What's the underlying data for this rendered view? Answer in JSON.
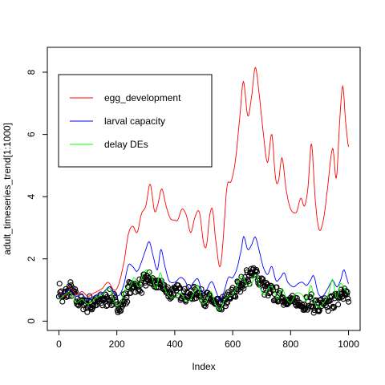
{
  "chart_data": {
    "type": "line",
    "xlabel": "Index",
    "ylabel": "adult_timeseries_trend[1:1000]",
    "xlim": [
      -40,
      1040
    ],
    "ylim": [
      -0.3,
      8.8
    ],
    "x_ticks": [
      0,
      200,
      400,
      600,
      800,
      1000
    ],
    "y_ticks": [
      0,
      2,
      4,
      6,
      8
    ],
    "legend_position": "top-left",
    "grid": false,
    "series": [
      {
        "name": "egg_development",
        "style": "line",
        "color": "#ff0000",
        "points": [
          [
            0,
            0.95
          ],
          [
            20,
            0.8
          ],
          [
            40,
            1.05
          ],
          [
            60,
            0.85
          ],
          [
            80,
            0.95
          ],
          [
            100,
            0.8
          ],
          [
            120,
            0.9
          ],
          [
            150,
            1.05
          ],
          [
            170,
            1.25
          ],
          [
            190,
            1.0
          ],
          [
            205,
            1.15
          ],
          [
            225,
            1.9
          ],
          [
            240,
            2.8
          ],
          [
            255,
            3.05
          ],
          [
            270,
            2.85
          ],
          [
            285,
            3.45
          ],
          [
            300,
            3.7
          ],
          [
            315,
            4.4
          ],
          [
            330,
            3.55
          ],
          [
            340,
            3.7
          ],
          [
            355,
            4.25
          ],
          [
            370,
            3.7
          ],
          [
            385,
            3.3
          ],
          [
            400,
            3.25
          ],
          [
            410,
            3.25
          ],
          [
            425,
            3.6
          ],
          [
            440,
            3.4
          ],
          [
            455,
            2.85
          ],
          [
            470,
            3.35
          ],
          [
            485,
            3.5
          ],
          [
            500,
            2.5
          ],
          [
            510,
            2.45
          ],
          [
            520,
            3.35
          ],
          [
            530,
            3.6
          ],
          [
            540,
            2.7
          ],
          [
            555,
            1.75
          ],
          [
            565,
            2.4
          ],
          [
            580,
            4.3
          ],
          [
            595,
            4.5
          ],
          [
            610,
            5.2
          ],
          [
            625,
            6.6
          ],
          [
            637,
            7.7
          ],
          [
            652,
            6.6
          ],
          [
            665,
            7.2
          ],
          [
            678,
            8.15
          ],
          [
            690,
            7.4
          ],
          [
            705,
            6.1
          ],
          [
            720,
            5.1
          ],
          [
            735,
            6.0
          ],
          [
            748,
            4.6
          ],
          [
            758,
            4.5
          ],
          [
            770,
            5.25
          ],
          [
            785,
            4.2
          ],
          [
            800,
            3.6
          ],
          [
            820,
            3.5
          ],
          [
            835,
            3.95
          ],
          [
            848,
            3.7
          ],
          [
            860,
            4.3
          ],
          [
            872,
            5.7
          ],
          [
            885,
            3.9
          ],
          [
            898,
            2.95
          ],
          [
            912,
            3.2
          ],
          [
            925,
            4.1
          ],
          [
            945,
            5.55
          ],
          [
            958,
            4.6
          ],
          [
            970,
            6.5
          ],
          [
            980,
            7.55
          ],
          [
            990,
            6.4
          ],
          [
            1000,
            5.6
          ]
        ]
      },
      {
        "name": "larval capacity",
        "style": "line",
        "color": "#0000ff",
        "points": [
          [
            0,
            0.8
          ],
          [
            20,
            0.9
          ],
          [
            40,
            1.0
          ],
          [
            60,
            0.8
          ],
          [
            80,
            0.85
          ],
          [
            100,
            0.7
          ],
          [
            130,
            0.85
          ],
          [
            150,
            0.9
          ],
          [
            175,
            1.1
          ],
          [
            195,
            0.85
          ],
          [
            210,
            0.85
          ],
          [
            225,
            1.2
          ],
          [
            240,
            1.8
          ],
          [
            255,
            1.75
          ],
          [
            270,
            1.6
          ],
          [
            285,
            1.9
          ],
          [
            300,
            2.3
          ],
          [
            312,
            2.55
          ],
          [
            325,
            2.1
          ],
          [
            340,
            1.65
          ],
          [
            352,
            2.3
          ],
          [
            365,
            1.8
          ],
          [
            380,
            1.3
          ],
          [
            400,
            1.25
          ],
          [
            420,
            1.4
          ],
          [
            435,
            1.3
          ],
          [
            450,
            1.05
          ],
          [
            465,
            1.25
          ],
          [
            480,
            1.35
          ],
          [
            495,
            0.95
          ],
          [
            510,
            1.0
          ],
          [
            520,
            1.2
          ],
          [
            530,
            1.25
          ],
          [
            545,
            0.9
          ],
          [
            557,
            0.65
          ],
          [
            570,
            0.95
          ],
          [
            585,
            1.4
          ],
          [
            600,
            1.4
          ],
          [
            615,
            1.7
          ],
          [
            630,
            2.3
          ],
          [
            638,
            2.72
          ],
          [
            652,
            2.3
          ],
          [
            665,
            2.45
          ],
          [
            678,
            2.7
          ],
          [
            692,
            2.25
          ],
          [
            705,
            1.75
          ],
          [
            720,
            1.5
          ],
          [
            735,
            1.75
          ],
          [
            750,
            1.3
          ],
          [
            765,
            1.4
          ],
          [
            778,
            1.55
          ],
          [
            790,
            1.25
          ],
          [
            810,
            1.1
          ],
          [
            825,
            1.2
          ],
          [
            840,
            1.25
          ],
          [
            855,
            1.15
          ],
          [
            868,
            1.3
          ],
          [
            880,
            1.45
          ],
          [
            895,
            0.9
          ],
          [
            910,
            0.8
          ],
          [
            925,
            1.0
          ],
          [
            945,
            1.3
          ],
          [
            960,
            1.1
          ],
          [
            972,
            1.3
          ],
          [
            984,
            1.65
          ],
          [
            995,
            1.35
          ],
          [
            1000,
            1.2
          ]
        ]
      },
      {
        "name": "delay DEs",
        "style": "line",
        "color": "#00ff00",
        "points": [
          [
            0,
            0.7
          ],
          [
            20,
            0.85
          ],
          [
            40,
            0.9
          ],
          [
            60,
            0.6
          ],
          [
            80,
            0.7
          ],
          [
            100,
            0.55
          ],
          [
            130,
            0.75
          ],
          [
            150,
            0.85
          ],
          [
            175,
            1.05
          ],
          [
            195,
            0.55
          ],
          [
            210,
            0.55
          ],
          [
            230,
            1.05
          ],
          [
            245,
            1.1
          ],
          [
            260,
            1.4
          ],
          [
            275,
            1.1
          ],
          [
            290,
            1.5
          ],
          [
            305,
            1.65
          ],
          [
            320,
            1.45
          ],
          [
            335,
            1.05
          ],
          [
            350,
            1.55
          ],
          [
            365,
            1.05
          ],
          [
            380,
            0.8
          ],
          [
            400,
            0.75
          ],
          [
            420,
            0.9
          ],
          [
            435,
            0.7
          ],
          [
            450,
            0.65
          ],
          [
            465,
            0.9
          ],
          [
            480,
            1.15
          ],
          [
            495,
            0.6
          ],
          [
            510,
            0.65
          ],
          [
            525,
            0.95
          ],
          [
            540,
            0.55
          ],
          [
            555,
            0.35
          ],
          [
            570,
            0.65
          ],
          [
            585,
            0.8
          ],
          [
            600,
            0.85
          ],
          [
            615,
            1.15
          ],
          [
            630,
            1.45
          ],
          [
            642,
            1.3
          ],
          [
            655,
            1.1
          ],
          [
            668,
            1.25
          ],
          [
            680,
            1.5
          ],
          [
            695,
            1.05
          ],
          [
            710,
            0.85
          ],
          [
            725,
            1.1
          ],
          [
            740,
            1.05
          ],
          [
            755,
            0.7
          ],
          [
            770,
            1.05
          ],
          [
            785,
            0.75
          ],
          [
            800,
            0.6
          ],
          [
            820,
            0.9
          ],
          [
            840,
            0.85
          ],
          [
            855,
            0.65
          ],
          [
            870,
            1.15
          ],
          [
            885,
            0.55
          ],
          [
            900,
            0.45
          ],
          [
            915,
            0.6
          ],
          [
            930,
            0.85
          ],
          [
            945,
            1.35
          ],
          [
            958,
            0.75
          ],
          [
            972,
            1.2
          ],
          [
            985,
            1.05
          ],
          [
            1000,
            0.9
          ]
        ]
      },
      {
        "name": "",
        "style": "points",
        "color": "#000000",
        "trend": [
          [
            0,
            1.0
          ],
          [
            15,
            0.75
          ],
          [
            30,
            0.95
          ],
          [
            45,
            1.0
          ],
          [
            60,
            0.7
          ],
          [
            80,
            0.6
          ],
          [
            100,
            0.55
          ],
          [
            120,
            0.55
          ],
          [
            140,
            0.65
          ],
          [
            160,
            0.7
          ],
          [
            180,
            0.75
          ],
          [
            200,
            0.5
          ],
          [
            215,
            0.5
          ],
          [
            230,
            0.75
          ],
          [
            245,
            1.05
          ],
          [
            260,
            1.15
          ],
          [
            275,
            1.1
          ],
          [
            290,
            1.2
          ],
          [
            305,
            1.35
          ],
          [
            320,
            1.3
          ],
          [
            335,
            1.1
          ],
          [
            350,
            1.2
          ],
          [
            365,
            1.05
          ],
          [
            380,
            0.9
          ],
          [
            400,
            0.95
          ],
          [
            420,
            0.95
          ],
          [
            440,
            0.85
          ],
          [
            460,
            0.85
          ],
          [
            480,
            0.95
          ],
          [
            500,
            0.75
          ],
          [
            520,
            0.7
          ],
          [
            540,
            0.55
          ],
          [
            555,
            0.45
          ],
          [
            570,
            0.6
          ],
          [
            590,
            0.75
          ],
          [
            610,
            0.95
          ],
          [
            625,
            1.15
          ],
          [
            640,
            1.3
          ],
          [
            655,
            1.45
          ],
          [
            670,
            1.55
          ],
          [
            685,
            1.45
          ],
          [
            700,
            1.25
          ],
          [
            715,
            1.05
          ],
          [
            730,
            0.95
          ],
          [
            745,
            0.85
          ],
          [
            760,
            0.8
          ],
          [
            775,
            0.75
          ],
          [
            790,
            0.65
          ],
          [
            810,
            0.6
          ],
          [
            830,
            0.6
          ],
          [
            850,
            0.55
          ],
          [
            870,
            0.6
          ],
          [
            885,
            0.5
          ],
          [
            900,
            0.45
          ],
          [
            915,
            0.5
          ],
          [
            930,
            0.55
          ],
          [
            945,
            0.65
          ],
          [
            960,
            0.7
          ],
          [
            975,
            0.85
          ],
          [
            990,
            0.9
          ],
          [
            1000,
            0.75
          ]
        ]
      }
    ]
  }
}
